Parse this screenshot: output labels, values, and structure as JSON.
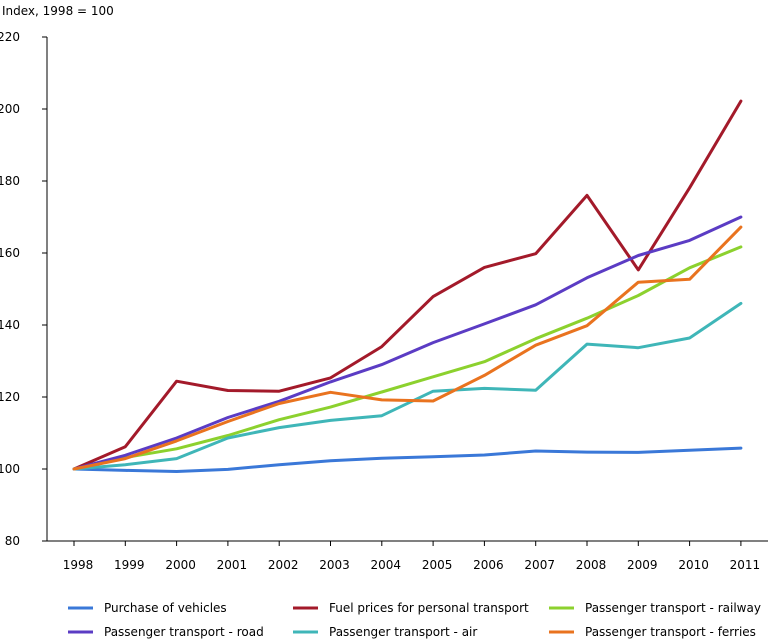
{
  "chart_data": {
    "type": "line",
    "title": "",
    "ylabel": "Index, 1998 = 100",
    "xlabel": "",
    "categories": [
      "1998",
      "1999",
      "2000",
      "2001",
      "2002",
      "2003",
      "2004",
      "2005",
      "2006",
      "2007",
      "2008",
      "2009",
      "2010",
      "2011"
    ],
    "ylim": [
      80,
      220
    ],
    "yticks": [
      80,
      100,
      120,
      140,
      160,
      180,
      200,
      220
    ],
    "grid": false,
    "legend_position": "bottom",
    "series": [
      {
        "name": "Purchase of vehicles",
        "color": "#3a78d8",
        "values": [
          100,
          99.6,
          99.3,
          99.9,
          101.2,
          102.3,
          103.0,
          103.4,
          103.9,
          105.0,
          104.7,
          104.6,
          105.2,
          105.8
        ]
      },
      {
        "name": "Fuel prices for personal transport",
        "color": "#a31a2a",
        "values": [
          100,
          106.2,
          124.4,
          121.8,
          121.6,
          125.3,
          134.0,
          147.9,
          156.0,
          159.8,
          176.0,
          155.3,
          178.1,
          202.2
        ]
      },
      {
        "name": "Passenger transport - railway",
        "color": "#8cd12e",
        "values": [
          100,
          103.2,
          105.6,
          109.3,
          113.7,
          117.2,
          121.4,
          125.6,
          129.8,
          136.2,
          141.9,
          148.2,
          155.9,
          161.7
        ]
      },
      {
        "name": "Passenger transport - road",
        "color": "#5b3cc4",
        "values": [
          100,
          103.8,
          108.6,
          114.3,
          118.8,
          124.2,
          129.0,
          135.1,
          140.3,
          145.6,
          153.1,
          159.3,
          163.5,
          170.0
        ]
      },
      {
        "name": "Passenger transport - air",
        "color": "#3fb6b8",
        "values": [
          100,
          101.2,
          102.9,
          108.6,
          111.5,
          113.5,
          114.8,
          121.6,
          122.4,
          121.9,
          134.7,
          133.7,
          136.4,
          146.0
        ]
      },
      {
        "name": "Passenger transport - ferries",
        "color": "#e9731f",
        "values": [
          100,
          102.9,
          107.8,
          113.2,
          118.2,
          121.3,
          119.2,
          118.9,
          126.0,
          134.4,
          139.8,
          151.9,
          152.7,
          167.2
        ]
      }
    ]
  }
}
